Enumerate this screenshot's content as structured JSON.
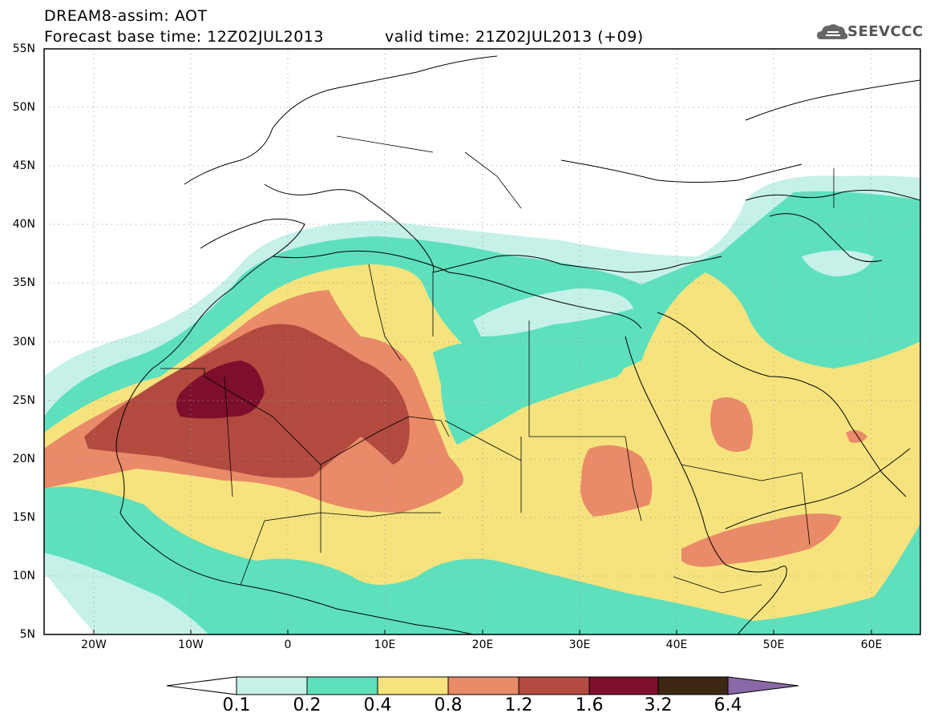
{
  "header": {
    "title": "DREAM8-assim: AOT",
    "base_time": "Forecast base time: 12Z02JUL2013",
    "valid_time": "valid time: 21Z02JUL2013 (+09)",
    "logo_text": "SEEVCCC"
  },
  "map": {
    "variable": "AOT",
    "lon_range": [
      -25,
      65
    ],
    "lat_range": [
      5,
      55
    ],
    "lat_ticks": [
      "55N",
      "50N",
      "45N",
      "40N",
      "35N",
      "30N",
      "25N",
      "20N",
      "15N",
      "10N",
      "5N"
    ],
    "lon_ticks": [
      "20W",
      "10W",
      "0",
      "10E",
      "20E",
      "30E",
      "40E",
      "50E",
      "60E"
    ],
    "gridlines": "dotted",
    "colors": {
      "c_01_02": "#c6f1e9",
      "c_02_04": "#5ee0bd",
      "c_04_08": "#f6e37e",
      "c_08_12": "#e98a68",
      "c_12_16": "#b24a3f",
      "c_16_32": "#7e0f2c",
      "c_32_64": "#3d2713",
      "c_gt_64": "#8b68a8"
    }
  },
  "colorbar": {
    "labels": [
      "0.1",
      "0.2",
      "0.4",
      "0.8",
      "1.2",
      "1.6",
      "3.2",
      "6.4"
    ]
  }
}
